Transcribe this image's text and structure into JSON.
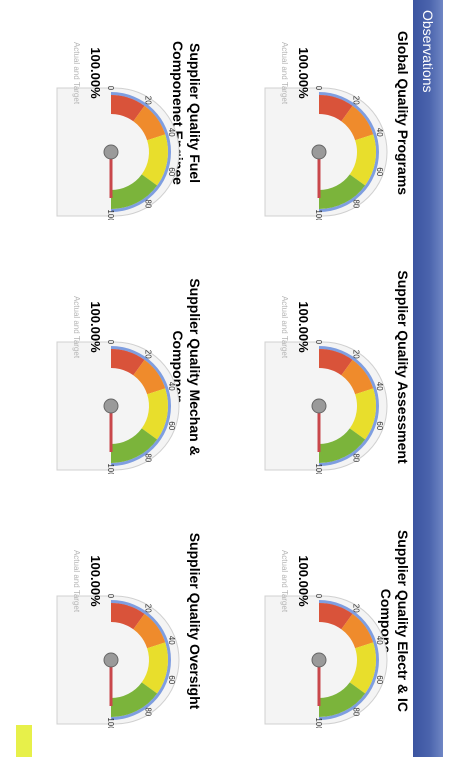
{
  "header": {
    "title": "Observations"
  },
  "gauges": [
    {
      "title": "Global Quality Programs",
      "value": "100.00%",
      "caption": "Actual and Target",
      "level": 1.0
    },
    {
      "title": "Supplier Quality Assessment",
      "value": "100.00%",
      "caption": "Actual and Target",
      "level": 1.0
    },
    {
      "title": "Supplier Quality Electr & IC Compone",
      "value": "100.00%",
      "caption": "Actual and Target",
      "level": 1.0
    },
    {
      "title": "Supplier Quality Fuel Componenet Enginee",
      "value": "100.00%",
      "caption": "Actual and Target",
      "level": 1.0
    },
    {
      "title": "Supplier Quality Mechan & Componen",
      "value": "100.00%",
      "caption": "Actual and Target",
      "level": 1.0
    },
    {
      "title": "Supplier Quality Oversight",
      "value": "100.00%",
      "caption": "Actual and Target",
      "level": 1.0
    }
  ],
  "ticks": [
    "0",
    "20",
    "40",
    "60",
    "80",
    "100"
  ],
  "colors": {
    "red": "#d9533a",
    "orange": "#ef8b2c",
    "yellow": "#e8de2c",
    "green": "#7bb43b",
    "needle": "#c9474b",
    "frame": "#7f9ee0"
  }
}
